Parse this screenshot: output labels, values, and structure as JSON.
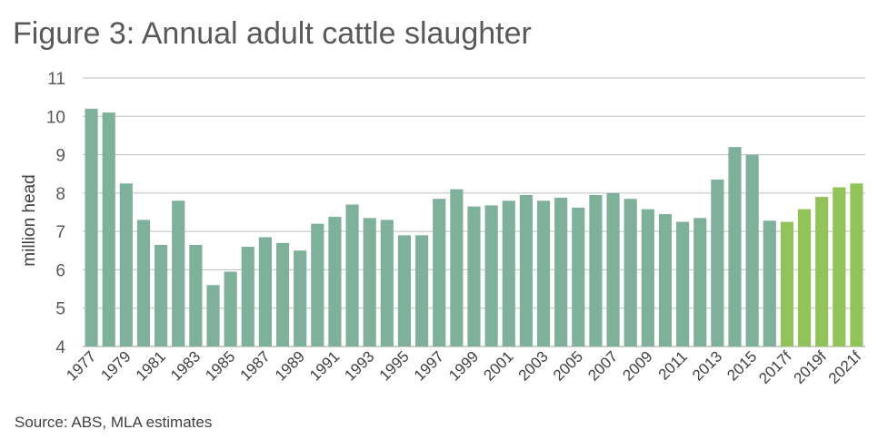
{
  "chart_data": {
    "type": "bar",
    "title": "Figure 3: Annual adult cattle slaughter",
    "ylabel": "million head",
    "xlabel": "",
    "ylim": [
      4,
      11
    ],
    "yticks": [
      "4",
      "5",
      "6",
      "7",
      "8",
      "9",
      "10",
      "11"
    ],
    "grid": true,
    "source": "Source: ABS, MLA estimates",
    "colors": {
      "actual": "#7fb09a",
      "forecast": "#92c35a",
      "grid": "#bfbfbf"
    },
    "categories": [
      "1977",
      "1978",
      "1979",
      "1980",
      "1981",
      "1982",
      "1983",
      "1984",
      "1985",
      "1986",
      "1987",
      "1988",
      "1989",
      "1990",
      "1991",
      "1992",
      "1993",
      "1994",
      "1995",
      "1996",
      "1997",
      "1998",
      "1999",
      "2000",
      "2001",
      "2002",
      "2003",
      "2004",
      "2005",
      "2006",
      "2007",
      "2008",
      "2009",
      "2010",
      "2011",
      "2012",
      "2013",
      "2014",
      "2015",
      "2016",
      "2017f",
      "2018f",
      "2019f",
      "2020f",
      "2021f"
    ],
    "tick_labels": [
      "1977",
      "",
      "1979",
      "",
      "1981",
      "",
      "1983",
      "",
      "1985",
      "",
      "1987",
      "",
      "1989",
      "",
      "1991",
      "",
      "1993",
      "",
      "1995",
      "",
      "1997",
      "",
      "1999",
      "",
      "2001",
      "",
      "2003",
      "",
      "2005",
      "",
      "2007",
      "",
      "2009",
      "",
      "2011",
      "",
      "2013",
      "",
      "2015",
      "",
      "2017f",
      "",
      "2019f",
      "",
      "2021f"
    ],
    "values": [
      10.2,
      10.1,
      8.25,
      7.3,
      6.65,
      7.8,
      6.65,
      5.6,
      5.95,
      6.6,
      6.85,
      6.7,
      6.5,
      7.2,
      7.38,
      7.7,
      7.35,
      7.3,
      6.9,
      6.9,
      7.85,
      8.1,
      7.65,
      7.68,
      7.8,
      7.95,
      7.8,
      7.88,
      7.62,
      7.95,
      8.0,
      7.85,
      7.58,
      7.45,
      7.25,
      7.35,
      8.35,
      9.2,
      9.0,
      7.28,
      7.25,
      7.58,
      7.9,
      8.15,
      8.25
    ],
    "forecast_from_index": 40
  }
}
